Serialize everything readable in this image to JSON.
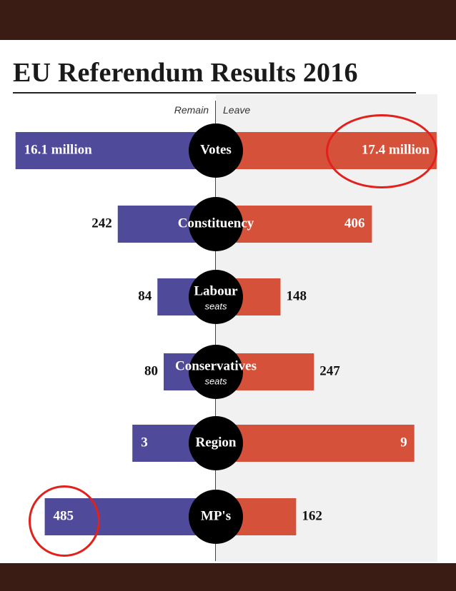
{
  "chart_data": {
    "type": "bar",
    "title": "EU Referendum Results 2016",
    "series": [
      {
        "name": "Remain",
        "color": "#4f4a9a"
      },
      {
        "name": "Leave",
        "color": "#d5513a"
      }
    ],
    "rows": [
      {
        "label": "Votes",
        "sublabel": "",
        "remain": 16.1,
        "leave": 17.4,
        "remain_text": "16.1 million",
        "leave_text": "17.4 million",
        "remain_frac": 0.96,
        "leave_frac": 0.99
      },
      {
        "label": "Constituency",
        "sublabel": "",
        "remain": 242,
        "leave": 406,
        "remain_text": "242",
        "leave_text": "406",
        "remain_frac": 0.47,
        "leave_frac": 0.7
      },
      {
        "label": "Labour",
        "sublabel": "seats",
        "remain": 84,
        "leave": 148,
        "remain_text": "84",
        "leave_text": "148",
        "remain_frac": 0.28,
        "leave_frac": 0.29
      },
      {
        "label": "Conservatives",
        "sublabel": "seats",
        "remain": 80,
        "leave": 247,
        "remain_text": "80",
        "leave_text": "247",
        "remain_frac": 0.25,
        "leave_frac": 0.44
      },
      {
        "label": "Region",
        "sublabel": "",
        "remain": 3,
        "leave": 9,
        "remain_text": "3",
        "leave_text": "9",
        "remain_frac": 0.4,
        "leave_frac": 0.89
      },
      {
        "label": "MP's",
        "sublabel": "",
        "remain": 485,
        "leave": 162,
        "remain_text": "485",
        "leave_text": "162",
        "remain_frac": 0.82,
        "leave_frac": 0.36
      }
    ]
  },
  "colors": {
    "remain": "#4f4a9a",
    "leave": "#d5513a",
    "highlight": "#e3201b",
    "band": "#3a1c14"
  }
}
